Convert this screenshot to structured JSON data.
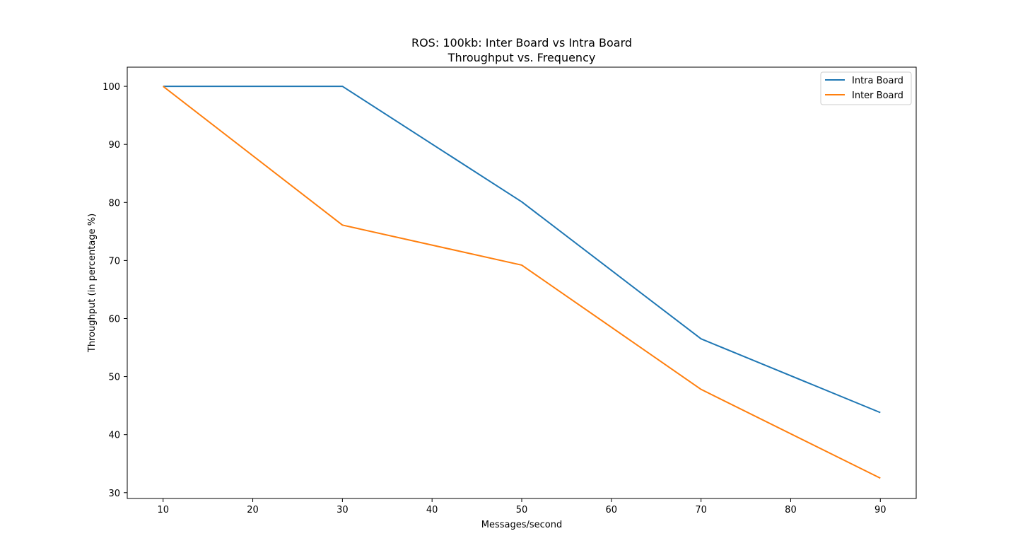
{
  "chart_data": {
    "type": "line",
    "title": "ROS: 100kb: Inter Board vs Intra Board",
    "subtitle": "Throughput vs. Frequency",
    "xlabel": "Messages/second",
    "ylabel": "Throughput (in percentage %)",
    "xlim": [
      6,
      94
    ],
    "ylim": [
      29,
      103.3
    ],
    "xticks": [
      10,
      20,
      30,
      40,
      50,
      60,
      70,
      80,
      90
    ],
    "yticks": [
      30,
      40,
      50,
      60,
      70,
      80,
      90,
      100
    ],
    "grid": false,
    "legend": "top-right",
    "x": [
      10,
      30,
      50,
      70,
      90
    ],
    "series": [
      {
        "name": "Intra Board",
        "color": "#1f77b4",
        "values": [
          100,
          100,
          80.1,
          56.5,
          43.8
        ]
      },
      {
        "name": "Inter Board",
        "color": "#ff7f0e",
        "values": [
          100,
          76.1,
          69.2,
          47.8,
          32.5
        ]
      }
    ]
  }
}
